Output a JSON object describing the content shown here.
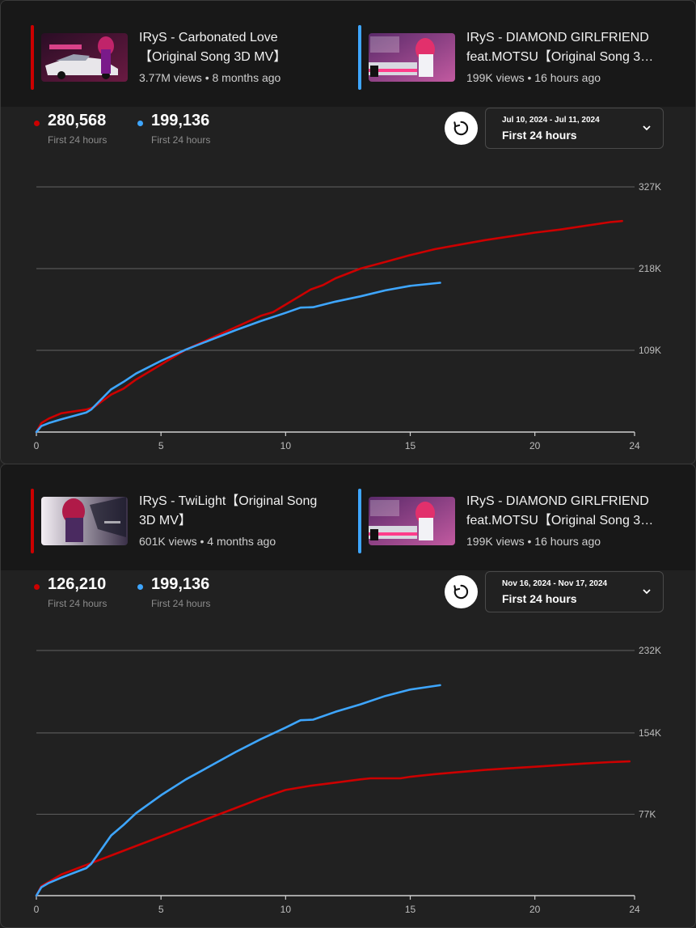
{
  "panels": [
    {
      "video_a": {
        "title": "IRyS - Carbonated Love【Original Song 3D MV】",
        "views": "3.77M views",
        "age": "8 months ago",
        "color": "#cc0000"
      },
      "video_b": {
        "title": "IRyS - DIAMOND GIRLFRIEND feat.MOTSU【Original Song 3D MV】",
        "views": "199K views",
        "age": "16 hours ago",
        "color": "#3ea6ff"
      },
      "stats": [
        {
          "value": "280,568",
          "label": "First 24 hours",
          "color": "#cc0000"
        },
        {
          "value": "199,136",
          "label": "First 24 hours",
          "color": "#3ea6ff"
        }
      ],
      "date_range": "Jul 10, 2024 - Jul 11, 2024",
      "period": "First 24 hours",
      "chart_data": {
        "type": "line",
        "xlim": [
          0,
          24
        ],
        "ylim": [
          0,
          327000
        ],
        "x_ticks": [
          0,
          5,
          10,
          15,
          20,
          24
        ],
        "x_tick_labels": [
          "0",
          "5",
          "10",
          "15",
          "20",
          "24"
        ],
        "y_ticks": [
          109000,
          218000,
          327000
        ],
        "y_tick_labels": [
          "109K",
          "218K",
          "327K"
        ],
        "grid": true,
        "series": [
          {
            "color": "#cc0000",
            "x": [
              0,
              0.2,
              0.5,
              1,
              2,
              2.3,
              3,
              3.5,
              4,
              5,
              6,
              7,
              8,
              9,
              9.5,
              10,
              11,
              11.5,
              12,
              13,
              14,
              15,
              16,
              17,
              18,
              19,
              20,
              21,
              22,
              23,
              23.5
            ],
            "y": [
              0,
              12000,
              18000,
              25000,
              30000,
              33000,
              50000,
              58000,
              70000,
              90000,
              110000,
              125000,
              140000,
              155000,
              160000,
              170000,
              190000,
              196000,
              205000,
              218000,
              227000,
              236000,
              244000,
              250000,
              256000,
              261000,
              266000,
              270000,
              275000,
              280000,
              281500
            ]
          },
          {
            "color": "#3ea6ff",
            "x": [
              0,
              0.2,
              0.5,
              1,
              2,
              2.2,
              3,
              3.5,
              4,
              5,
              6,
              7,
              8,
              9,
              10,
              10.6,
              11.1,
              12,
              13,
              14,
              15,
              16.2
            ],
            "y": [
              0,
              8000,
              12000,
              17000,
              26000,
              30000,
              57000,
              67000,
              78000,
              95000,
              110000,
              123000,
              136000,
              148000,
              159000,
              166000,
              166500,
              174000,
              181000,
              189000,
              195000,
              199136
            ]
          }
        ]
      }
    },
    {
      "video_a": {
        "title": "IRyS - TwiLight【Original Song 3D MV】",
        "views": "601K views",
        "age": "4 months ago",
        "color": "#cc0000"
      },
      "video_b": {
        "title": "IRyS - DIAMOND GIRLFRIEND feat.MOTSU【Original Song 3D MV】",
        "views": "199K views",
        "age": "16 hours ago",
        "color": "#3ea6ff"
      },
      "stats": [
        {
          "value": "126,210",
          "label": "First 24 hours",
          "color": "#cc0000"
        },
        {
          "value": "199,136",
          "label": "First 24 hours",
          "color": "#3ea6ff"
        }
      ],
      "date_range": "Nov 16, 2024 - Nov 17, 2024",
      "period": "First 24 hours",
      "chart_data": {
        "type": "line",
        "xlim": [
          0,
          24
        ],
        "ylim": [
          0,
          232000
        ],
        "x_ticks": [
          0,
          5,
          10,
          15,
          20,
          24
        ],
        "x_tick_labels": [
          "0",
          "5",
          "10",
          "15",
          "20",
          "24"
        ],
        "y_ticks": [
          77000,
          154000,
          232000
        ],
        "y_tick_labels": [
          "77K",
          "154K",
          "232K"
        ],
        "grid": true,
        "series": [
          {
            "color": "#cc0000",
            "x": [
              0,
              0.2,
              0.5,
              1,
              2,
              3,
              4,
              5,
              6,
              7,
              8,
              9,
              10,
              11,
              12,
              13,
              13.4,
              14.6,
              15,
              16,
              17,
              18,
              19,
              20,
              21,
              22,
              23,
              23.8
            ],
            "y": [
              0,
              9000,
              13000,
              20000,
              29000,
              38000,
              47000,
              56000,
              65000,
              74000,
              83000,
              92000,
              100000,
              104000,
              107000,
              110000,
              111000,
              111000,
              112500,
              115000,
              117000,
              119000,
              120500,
              122000,
              123500,
              125000,
              126300,
              127000
            ]
          },
          {
            "color": "#3ea6ff",
            "x": [
              0,
              0.2,
              0.5,
              1,
              2,
              2.2,
              3,
              3.5,
              4,
              5,
              6,
              7,
              8,
              9,
              10,
              10.6,
              11.1,
              12,
              13,
              14,
              15,
              16.2
            ],
            "y": [
              0,
              8000,
              12000,
              17000,
              26000,
              30000,
              57000,
              67000,
              78000,
              95000,
              110000,
              123000,
              136000,
              148000,
              159000,
              166000,
              166500,
              174000,
              181000,
              189000,
              195000,
              199136
            ]
          }
        ]
      }
    }
  ]
}
